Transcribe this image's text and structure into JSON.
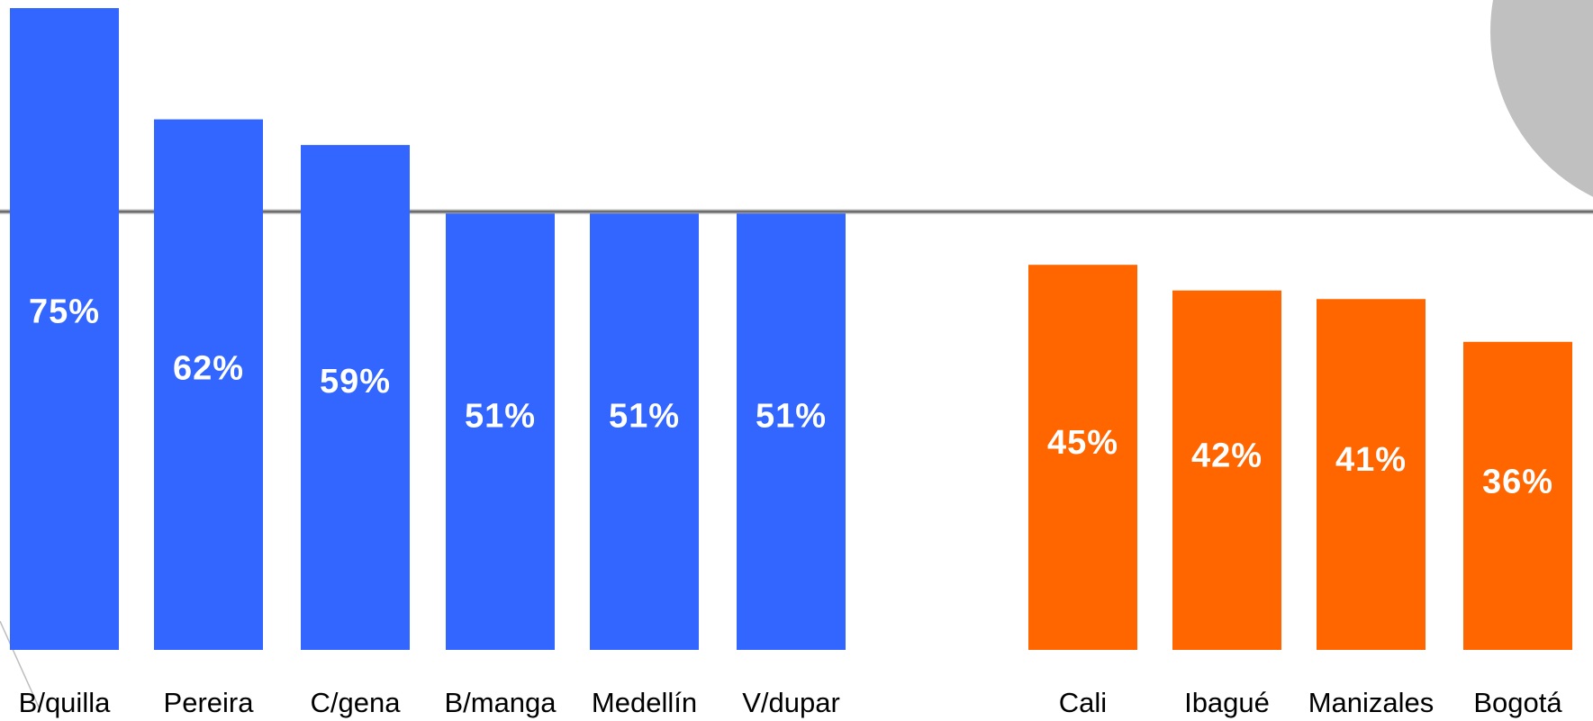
{
  "chart_data": {
    "type": "bar",
    "title": "",
    "xlabel": "",
    "ylabel": "",
    "ylim": [
      0,
      75
    ],
    "grid": false,
    "legend": "none",
    "reference_line": 51,
    "categories": [
      "B/quilla",
      "Pereira",
      "C/gena",
      "B/manga",
      "Medellín",
      "V/dupar",
      "Cali",
      "Ibagué",
      "Manizales",
      "Bogotá"
    ],
    "values": [
      75,
      62,
      59,
      51,
      51,
      51,
      45,
      42,
      41,
      36
    ],
    "value_labels": [
      "75%",
      "62%",
      "59%",
      "51%",
      "51%",
      "51%",
      "45%",
      "42%",
      "41%",
      "36%"
    ],
    "colors": {
      "above": "#3366ff",
      "below": "#ff6600",
      "reference_line": "#6e6e6e",
      "corner_circle": "#c0c0c0"
    }
  }
}
